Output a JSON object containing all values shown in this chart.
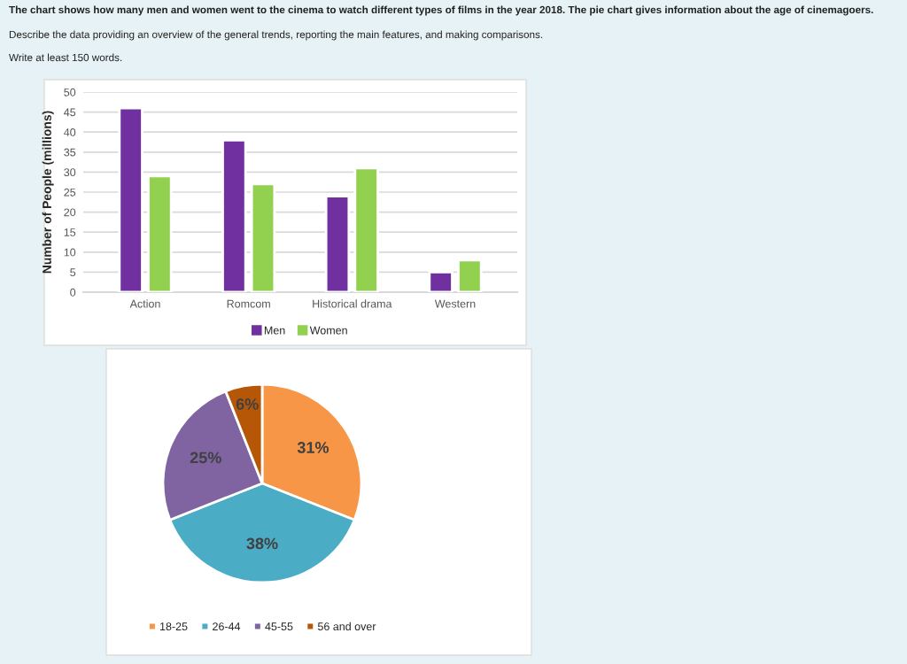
{
  "chart_data": [
    {
      "type": "bar",
      "annotations": [
        "The chart shows how many men and women went to the cinema to watch different types of films in the year 2018. The pie chart gives information about the age of cinemagoers.",
        "Describe the data providing an overview of the general trends, reporting the main features, and making comparisons.",
        "Write at least 150 words."
      ],
      "ylabel": "Number of People (millions)",
      "categories": [
        "Action",
        "Romcom",
        "Historical drama",
        "Western"
      ],
      "series": [
        {
          "name": "Men",
          "color": "#7030a0",
          "values": [
            46,
            38,
            24,
            5
          ]
        },
        {
          "name": "Women",
          "color": "#92d050",
          "values": [
            29,
            27,
            31,
            8
          ]
        }
      ],
      "ylim": [
        0,
        50
      ],
      "yticks": [
        0,
        5,
        10,
        15,
        20,
        25,
        30,
        35,
        40,
        45,
        50
      ],
      "grid": "y",
      "legend": "bottom"
    },
    {
      "type": "pie",
      "categories": [
        "18-25",
        "26-44",
        "45-55",
        "56 and over"
      ],
      "values": [
        31,
        38,
        25,
        6
      ],
      "colors": [
        "#f79646",
        "#4bacc6",
        "#8064a2",
        "#b65708"
      ],
      "value_labels": [
        "31%",
        "38%",
        "25%",
        "6%"
      ],
      "legend": "bottom"
    }
  ]
}
